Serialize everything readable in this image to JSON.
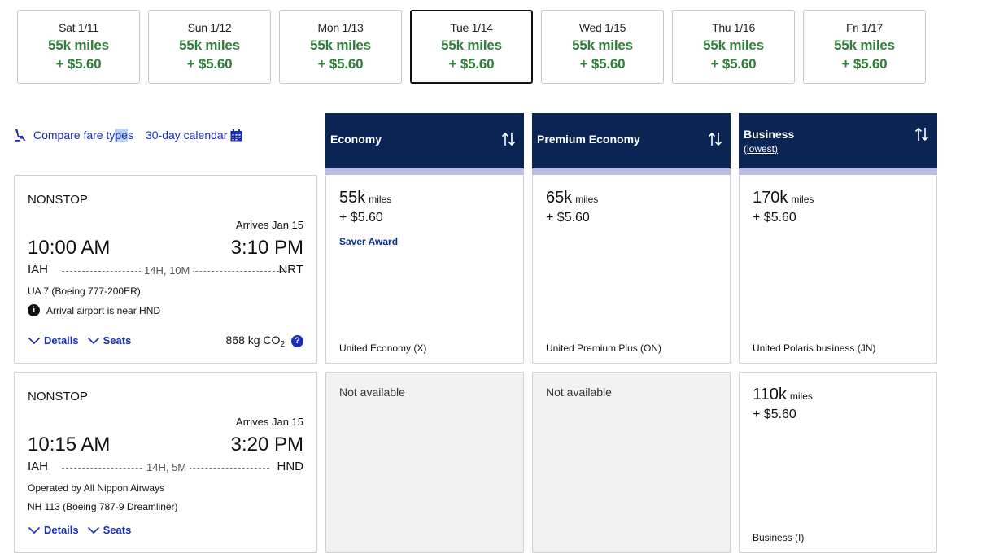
{
  "dates": [
    {
      "label": "Sat 1/11",
      "miles": "55k miles",
      "price": "+ $5.60",
      "selected": false
    },
    {
      "label": "Sun 1/12",
      "miles": "55k miles",
      "price": "+ $5.60",
      "selected": false
    },
    {
      "label": "Mon 1/13",
      "miles": "55k miles",
      "price": "+ $5.60",
      "selected": false
    },
    {
      "label": "Tue 1/14",
      "miles": "55k miles",
      "price": "+ $5.60",
      "selected": true
    },
    {
      "label": "Wed 1/15",
      "miles": "55k miles",
      "price": "+ $5.60",
      "selected": false
    },
    {
      "label": "Thu 1/16",
      "miles": "55k miles",
      "price": "+ $5.60",
      "selected": false
    },
    {
      "label": "Fri 1/17",
      "miles": "55k miles",
      "price": "+ $5.60",
      "selected": false
    }
  ],
  "links": {
    "compare_pre": "Compare fare ty",
    "compare_hl": "pe",
    "compare_post": "s",
    "calendar": "30-day calendar"
  },
  "columns": [
    {
      "title": "Economy",
      "sub": ""
    },
    {
      "title": "Premium Economy",
      "sub": ""
    },
    {
      "title": "Business",
      "sub": "(lowest)"
    }
  ],
  "flights": [
    {
      "type": "NONSTOP",
      "arrives": "Arrives Jan 15",
      "depart_time": "10:00 AM",
      "arrive_time": "3:10 PM",
      "origin": "IAH",
      "destination": "NRT",
      "duration": "14H, 10M",
      "info1": "UA 7 (Boeing 777-200ER)",
      "info2": "Arrival airport is near HND",
      "details_label": "Details",
      "seats_label": "Seats",
      "emissions": "868 kg CO",
      "emissions_sub": "2",
      "fares": [
        {
          "miles": "55k",
          "unit": "miles",
          "fee": "+ $5.60",
          "tag": "Saver Award",
          "cabin": "United Economy (X)"
        },
        {
          "miles": "65k",
          "unit": "miles",
          "fee": "+ $5.60",
          "tag": "",
          "cabin": "United Premium Plus (ON)"
        },
        {
          "miles": "170k",
          "unit": "miles",
          "fee": "+ $5.60",
          "tag": "",
          "cabin": "United Polaris business (JN)"
        }
      ]
    },
    {
      "type": "NONSTOP",
      "arrives": "Arrives Jan 15",
      "depart_time": "10:15 AM",
      "arrive_time": "3:20 PM",
      "origin": "IAH",
      "destination": "HND",
      "duration": "14H, 5M",
      "info1": "Operated by All Nippon Airways",
      "info2": "NH 113 (Boeing 787-9 Dreamliner)",
      "details_label": "Details",
      "seats_label": "Seats",
      "fares": [
        {
          "not_available": "Not available"
        },
        {
          "not_available": "Not available"
        },
        {
          "miles": "110k",
          "unit": "miles",
          "fee": "+ $5.60",
          "tag": "",
          "cabin": "Business (I)"
        }
      ]
    }
  ],
  "icons": {
    "info": "i",
    "help": "?"
  }
}
